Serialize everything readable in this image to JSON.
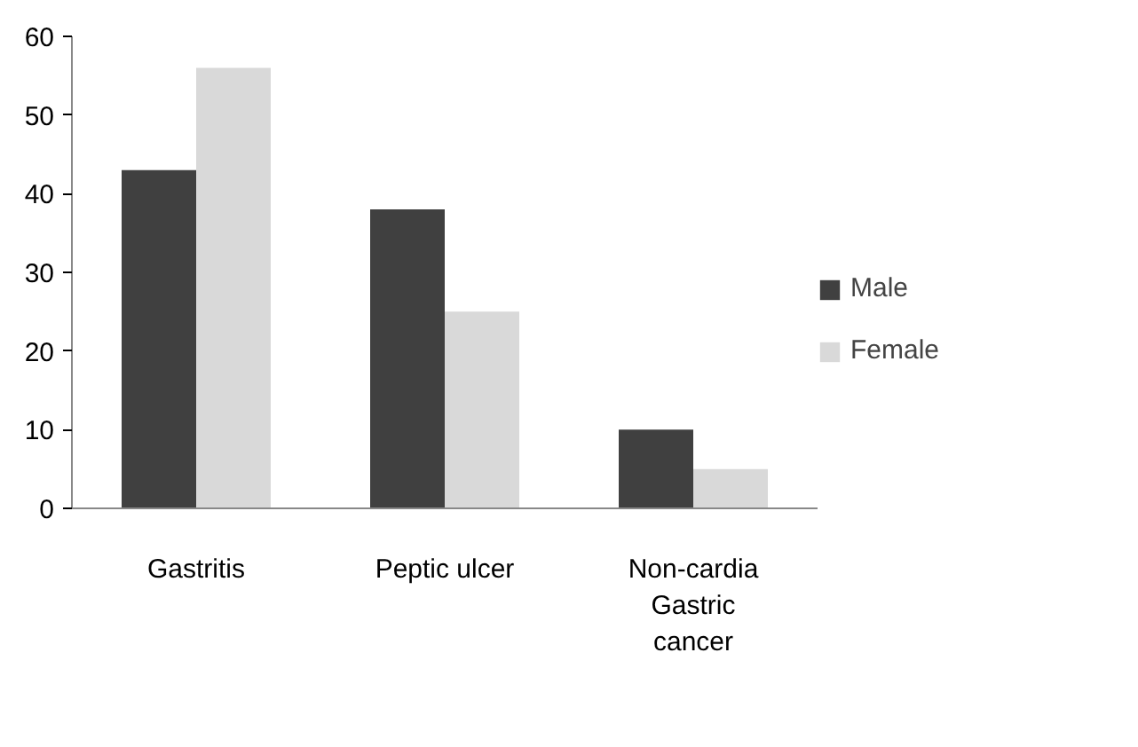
{
  "chart_data": {
    "type": "bar",
    "categories": [
      "Gastritis",
      "Peptic ulcer",
      "Non-cardia Gastric cancer"
    ],
    "series": [
      {
        "name": "Male",
        "color": "#404040",
        "values": [
          43,
          38,
          10
        ]
      },
      {
        "name": "Female",
        "color": "#d9d9d9",
        "values": [
          56,
          25,
          5
        ]
      }
    ],
    "ylim": [
      0,
      60
    ],
    "yticks": [
      0,
      10,
      20,
      30,
      40,
      50,
      60
    ],
    "grid": false,
    "legend": "right"
  }
}
